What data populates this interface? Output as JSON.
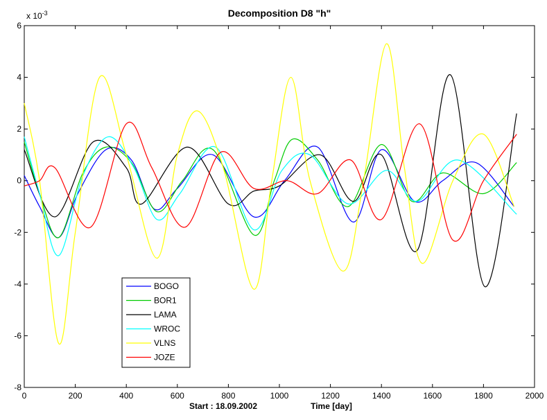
{
  "chart_data": {
    "type": "line",
    "title": "Decomposition D8 \"h\"",
    "xlabel": "Time [day]",
    "start_label": "Start : 18.09.2002",
    "y_exponent": "x 10",
    "y_exponent_power": "-3",
    "xlim": [
      0,
      2000
    ],
    "ylim": [
      -8,
      6
    ],
    "xticks": [
      0,
      200,
      400,
      600,
      800,
      1000,
      1200,
      1400,
      1600,
      1800,
      2000
    ],
    "yticks": [
      -8,
      -6,
      -4,
      -2,
      0,
      2,
      4,
      6
    ],
    "grid": false,
    "legend_position": "lower-left",
    "series": [
      {
        "name": "BOGO",
        "color": "#0000ff",
        "points": [
          [
            0,
            0.2
          ],
          [
            60,
            -1.0
          ],
          [
            135,
            -2.2
          ],
          [
            210,
            -0.5
          ],
          [
            320,
            1.2
          ],
          [
            420,
            0.8
          ],
          [
            510,
            -1.1
          ],
          [
            600,
            -0.3
          ],
          [
            740,
            1.0
          ],
          [
            900,
            -1.4
          ],
          [
            1020,
            0.0
          ],
          [
            1150,
            1.3
          ],
          [
            1290,
            -1.6
          ],
          [
            1400,
            1.2
          ],
          [
            1530,
            -0.8
          ],
          [
            1640,
            0.0
          ],
          [
            1770,
            0.7
          ],
          [
            1920,
            -1.0
          ]
        ]
      },
      {
        "name": "BOR1",
        "color": "#00cc00",
        "points": [
          [
            0,
            1.5
          ],
          [
            60,
            -0.5
          ],
          [
            135,
            -2.2
          ],
          [
            230,
            0.3
          ],
          [
            320,
            1.3
          ],
          [
            420,
            0.7
          ],
          [
            520,
            -1.2
          ],
          [
            620,
            0.0
          ],
          [
            740,
            1.2
          ],
          [
            900,
            -2.1
          ],
          [
            980,
            0.0
          ],
          [
            1050,
            1.6
          ],
          [
            1150,
            0.8
          ],
          [
            1270,
            -1.0
          ],
          [
            1400,
            1.4
          ],
          [
            1520,
            -0.8
          ],
          [
            1640,
            0.3
          ],
          [
            1800,
            -0.5
          ],
          [
            1930,
            0.7
          ]
        ]
      },
      {
        "name": "LAMA",
        "color": "#000000",
        "points": [
          [
            0,
            1.2
          ],
          [
            120,
            -1.4
          ],
          [
            270,
            1.5
          ],
          [
            400,
            0.5
          ],
          [
            460,
            -0.9
          ],
          [
            640,
            1.3
          ],
          [
            800,
            -0.9
          ],
          [
            900,
            -0.4
          ],
          [
            1000,
            -0.2
          ],
          [
            1160,
            1.0
          ],
          [
            1290,
            -0.8
          ],
          [
            1400,
            1.0
          ],
          [
            1540,
            -2.7
          ],
          [
            1670,
            4.1
          ],
          [
            1805,
            -4.1
          ],
          [
            1930,
            2.6
          ]
        ]
      },
      {
        "name": "WROC",
        "color": "#00ffff",
        "points": [
          [
            0,
            1.7
          ],
          [
            60,
            -0.5
          ],
          [
            135,
            -2.9
          ],
          [
            230,
            0.2
          ],
          [
            330,
            1.7
          ],
          [
            430,
            0.5
          ],
          [
            520,
            -1.5
          ],
          [
            610,
            -0.5
          ],
          [
            750,
            1.3
          ],
          [
            900,
            -1.9
          ],
          [
            1010,
            0.4
          ],
          [
            1120,
            1.0
          ],
          [
            1270,
            -0.9
          ],
          [
            1420,
            0.4
          ],
          [
            1540,
            -0.8
          ],
          [
            1700,
            0.8
          ],
          [
            1930,
            -1.3
          ]
        ]
      },
      {
        "name": "VLNS",
        "color": "#ffff00",
        "points": [
          [
            0,
            3.0
          ],
          [
            60,
            0.0
          ],
          [
            135,
            -6.3
          ],
          [
            200,
            -2.0
          ],
          [
            295,
            4.0
          ],
          [
            400,
            1.0
          ],
          [
            520,
            -3.0
          ],
          [
            600,
            1.0
          ],
          [
            680,
            2.7
          ],
          [
            780,
            0.5
          ],
          [
            900,
            -4.2
          ],
          [
            970,
            0.0
          ],
          [
            1045,
            4.0
          ],
          [
            1120,
            0.0
          ],
          [
            1250,
            -3.5
          ],
          [
            1330,
            0.0
          ],
          [
            1420,
            5.3
          ],
          [
            1490,
            0.5
          ],
          [
            1560,
            -3.2
          ],
          [
            1680,
            0.0
          ],
          [
            1800,
            1.8
          ],
          [
            1920,
            -1.0
          ]
        ]
      },
      {
        "name": "JOZE",
        "color": "#ff0000",
        "points": [
          [
            0,
            -0.2
          ],
          [
            60,
            0.0
          ],
          [
            120,
            0.5
          ],
          [
            260,
            -1.8
          ],
          [
            400,
            2.2
          ],
          [
            500,
            0.5
          ],
          [
            630,
            -1.8
          ],
          [
            770,
            1.1
          ],
          [
            900,
            -0.3
          ],
          [
            1030,
            0.0
          ],
          [
            1150,
            -0.5
          ],
          [
            1280,
            0.8
          ],
          [
            1400,
            -1.5
          ],
          [
            1550,
            2.2
          ],
          [
            1680,
            -2.3
          ],
          [
            1800,
            0.0
          ],
          [
            1930,
            1.8
          ]
        ]
      }
    ]
  }
}
